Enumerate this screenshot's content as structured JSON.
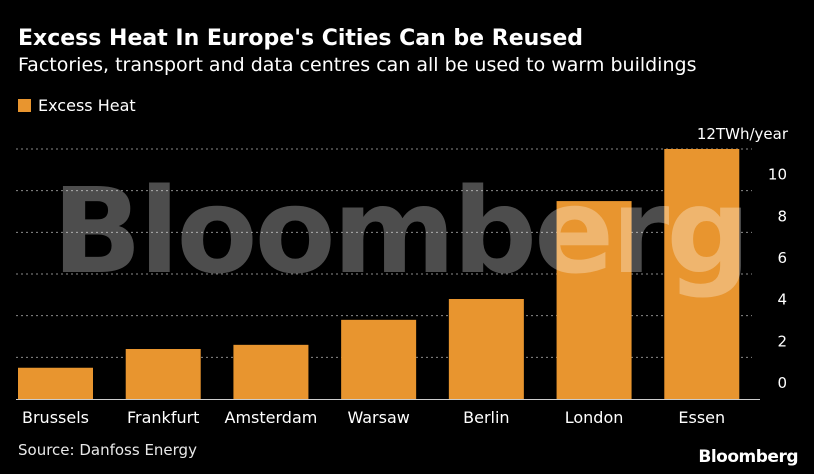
{
  "header": {
    "title": "Excess Heat In Europe's Cities Can be Reused",
    "subtitle": "Factories, transport and data centres can all be used to warm buildings"
  },
  "legend": {
    "label": "Excess Heat",
    "color": "#E8952F"
  },
  "footer": {
    "source": "Source: Danfoss Energy",
    "brand": "Bloomberg"
  },
  "watermark": "Bloomberg",
  "chart_data": {
    "type": "bar",
    "title": "Excess Heat In Europe's Cities Can be Reused",
    "subtitle": "Factories, transport and data centres can all be used to warm buildings",
    "categories": [
      "Brussels",
      "Frankfurt",
      "Amsterdam",
      "Warsaw",
      "Berlin",
      "London",
      "Essen"
    ],
    "series": [
      {
        "name": "Excess Heat",
        "values": [
          1.5,
          2.4,
          2.6,
          3.8,
          4.8,
          9.5,
          12.0
        ]
      }
    ],
    "unit_label": "12TWh/year",
    "yticks": [
      0,
      2,
      4,
      6,
      8,
      10
    ],
    "ylim": [
      0,
      12
    ],
    "grid": true,
    "legend_position": "top-left",
    "axis_side": "right",
    "bar_color": "#E8952F",
    "background": "#000000"
  }
}
